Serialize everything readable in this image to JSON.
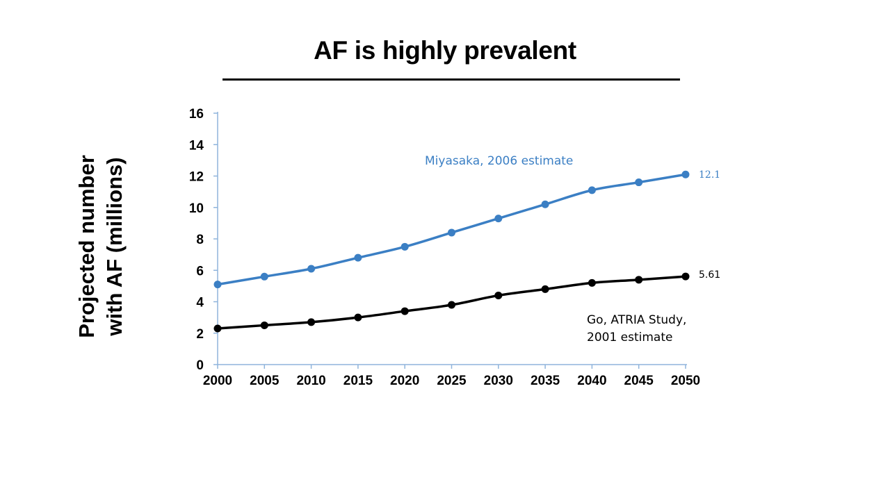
{
  "slide": {
    "title": "AF is highly prevalent"
  },
  "chart_data": {
    "type": "line",
    "title": "AF is highly prevalent",
    "ylabel": "Projected number with AF (millions)",
    "ylabel_lines": [
      "Projected number",
      "with AF (millions)"
    ],
    "xlabel": "",
    "x": [
      2000,
      2005,
      2010,
      2015,
      2020,
      2025,
      2030,
      2035,
      2040,
      2045,
      2050
    ],
    "xlim": [
      2000,
      2050
    ],
    "ylim": [
      0,
      16
    ],
    "yticks": [
      0,
      2,
      4,
      6,
      8,
      10,
      12,
      14,
      16
    ],
    "grid": false,
    "series": [
      {
        "name": "Miyasaka, 2006 estimate",
        "color": "#3b7fc4",
        "values": [
          5.1,
          5.6,
          6.1,
          6.8,
          7.5,
          8.4,
          9.3,
          10.2,
          11.1,
          11.6,
          12.1
        ],
        "end_label": "12.1"
      },
      {
        "name": "Go, ATRIA Study, 2001 estimate",
        "name_lines": [
          "Go, ATRIA Study,",
          "2001 estimate"
        ],
        "color": "#000000",
        "values": [
          2.3,
          2.5,
          2.7,
          3.0,
          3.4,
          3.8,
          4.4,
          4.8,
          5.2,
          5.4,
          5.61
        ],
        "end_label": "5.61"
      }
    ]
  }
}
